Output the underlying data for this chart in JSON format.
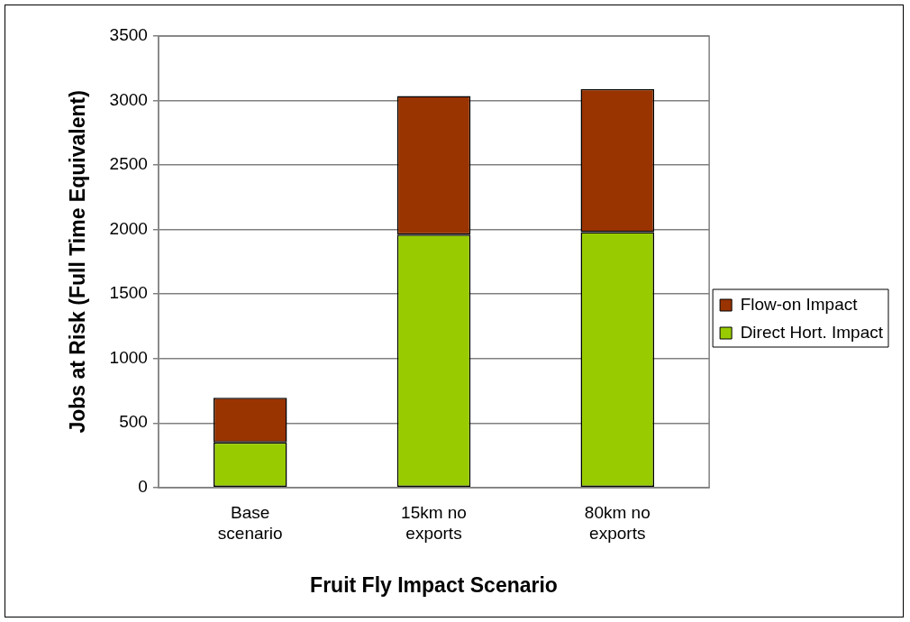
{
  "chart_data": {
    "type": "bar",
    "stacked": true,
    "xlabel": "Fruit Fly Impact Scenario",
    "ylabel": "Jobs at Risk (Full Time Equivalent)",
    "categories": [
      "Base scenario",
      "15km no exports",
      "80km no exports"
    ],
    "series": [
      {
        "name": "Direct Hort. Impact",
        "color": "#99cc00",
        "values": [
          350,
          1960,
          1980
        ]
      },
      {
        "name": "Flow-on Impact",
        "color": "#993300",
        "values": [
          345,
          1075,
          1110
        ]
      }
    ],
    "ylim": [
      0,
      3500
    ],
    "yticks": [
      0,
      500,
      1000,
      1500,
      2000,
      2500,
      3000,
      3500
    ],
    "grid": "y",
    "legend": "right"
  }
}
